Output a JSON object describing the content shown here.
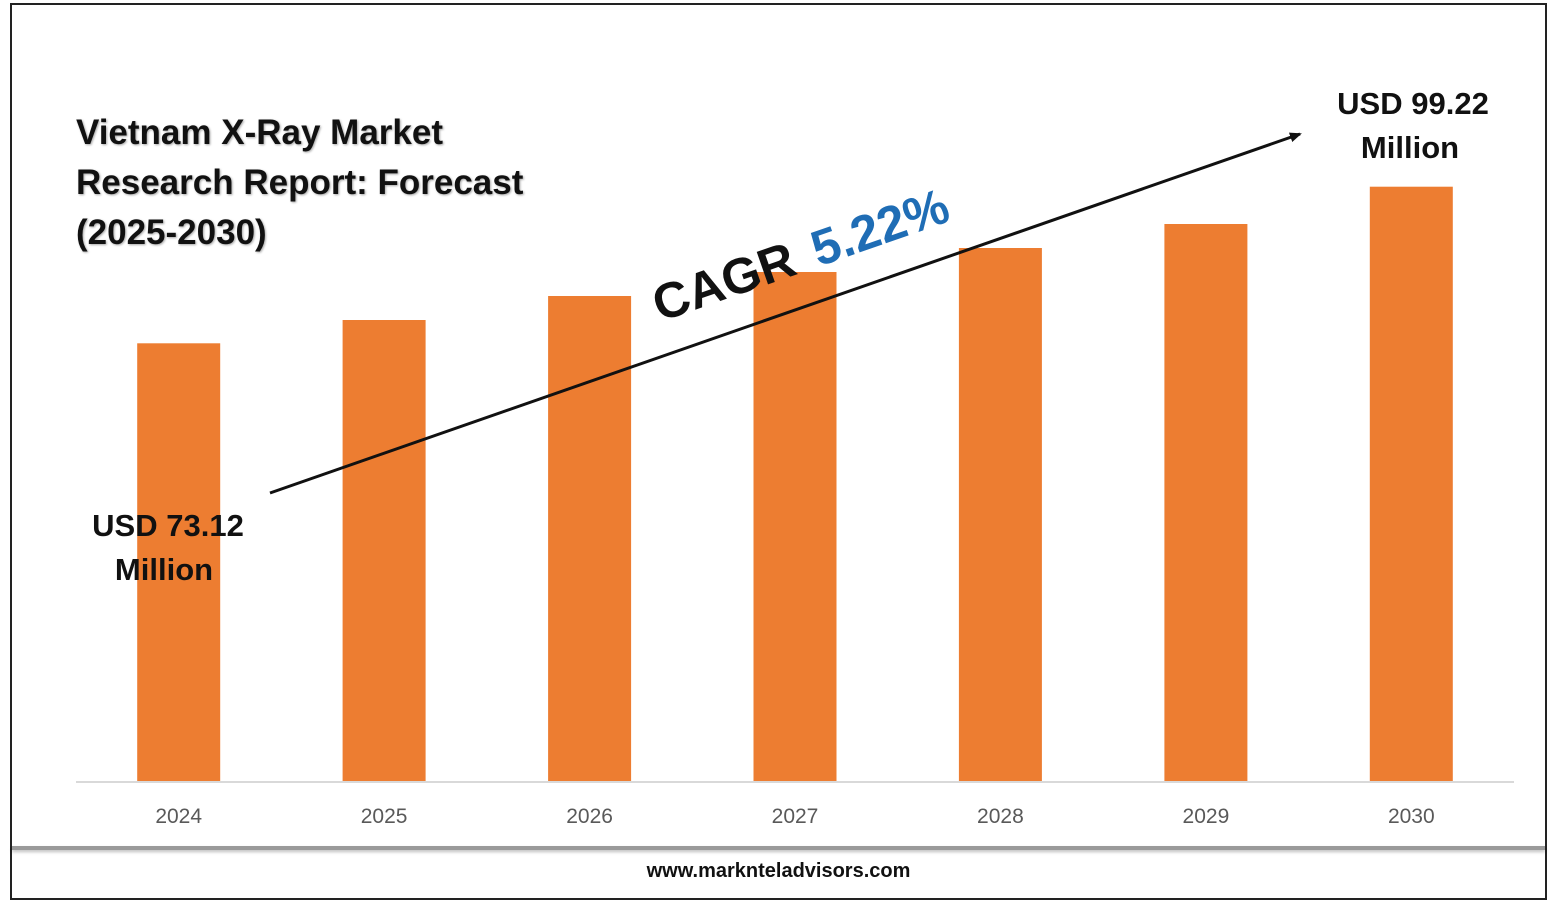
{
  "title": "Vietnam X-Ray Market\nResearch Report: Forecast\n(2025-2030)",
  "footer": {
    "url": "www.marknteladvisors.com"
  },
  "cagr": {
    "label": "CAGR",
    "value": "5.22%",
    "value_color": "#1f6db5"
  },
  "callouts": {
    "start_line1": "USD 73.12",
    "start_line2": "Million",
    "end_line1": "USD 99.22",
    "end_line2": "Million"
  },
  "chart_data": {
    "type": "bar",
    "categories": [
      "2024",
      "2025",
      "2026",
      "2027",
      "2028",
      "2029",
      "2030"
    ],
    "values": [
      73.12,
      77.0,
      81.0,
      85.0,
      89.0,
      93.0,
      99.22
    ],
    "title": "Vietnam X-Ray Market Research Report: Forecast (2025-2030)",
    "xlabel": "",
    "ylabel": "",
    "unit": "USD Million",
    "ylim": [
      0,
      100
    ],
    "grid": false,
    "bar_color": "#ed7d31",
    "axis_color": "#d9d9d9"
  }
}
